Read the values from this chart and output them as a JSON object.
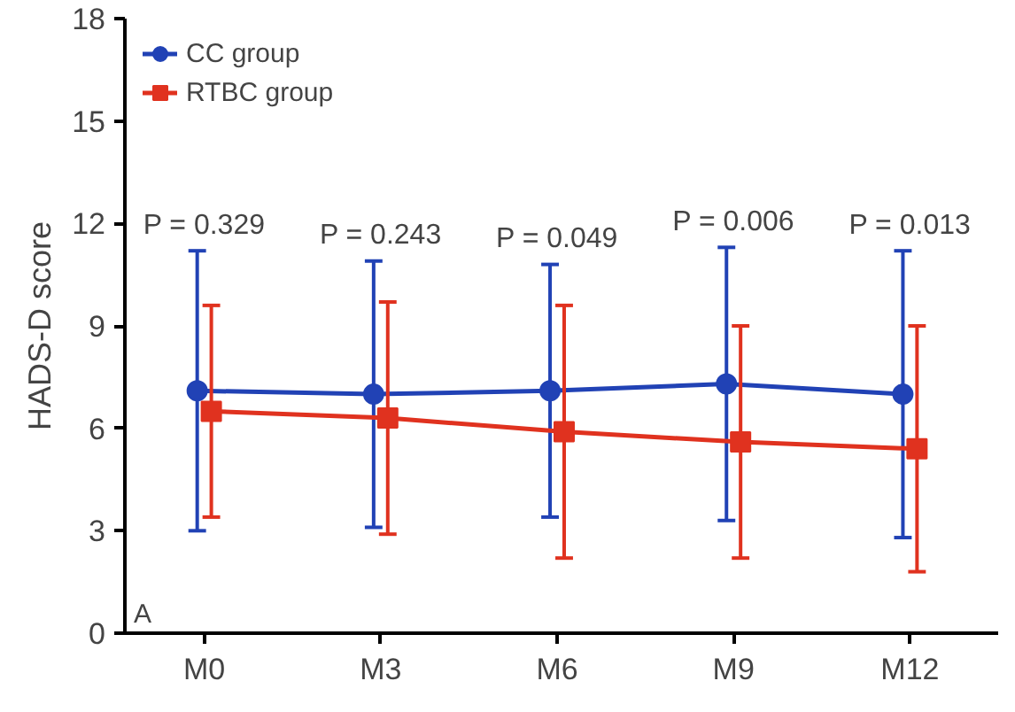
{
  "chart_data": {
    "type": "line",
    "ylabel": "HADS-D score",
    "categories": [
      "M0",
      "M3",
      "M6",
      "M9",
      "M12"
    ],
    "ylim": [
      0,
      18
    ],
    "yticks": [
      0,
      3,
      6,
      9,
      12,
      15,
      18
    ],
    "grid": false,
    "legend": "top left",
    "series": [
      {
        "name": "CC group",
        "color": "#2142b5",
        "marker": "circle",
        "values": [
          7.1,
          7.0,
          7.1,
          7.3,
          7.0
        ],
        "errors": [
          [
            3.0,
            11.2
          ],
          [
            3.1,
            10.9
          ],
          [
            3.4,
            10.8
          ],
          [
            3.3,
            11.3
          ],
          [
            2.8,
            11.2
          ]
        ]
      },
      {
        "name": "RTBC group",
        "color": "#e0321f",
        "marker": "square",
        "values": [
          6.5,
          6.3,
          5.9,
          5.6,
          5.4
        ],
        "errors": [
          [
            3.4,
            9.6
          ],
          [
            2.9,
            9.7
          ],
          [
            2.2,
            9.6
          ],
          [
            2.2,
            9.0
          ],
          [
            1.8,
            9.0
          ]
        ]
      }
    ],
    "annotations": [
      "P = 0.329",
      "P = 0.243",
      "P = 0.049",
      "P = 0.006",
      "P = 0.013",
      "A"
    ]
  }
}
